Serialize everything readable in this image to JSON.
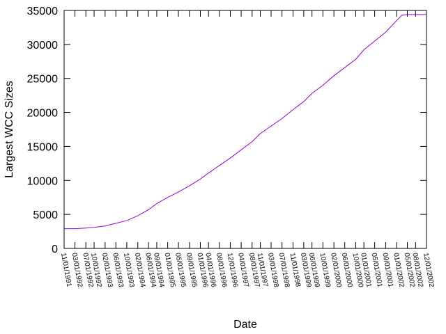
{
  "chart_data": {
    "type": "line",
    "title": "",
    "xlabel": "Date",
    "ylabel": "Largest WCC Sizes",
    "ylim": [
      0,
      35000
    ],
    "y_ticks": [
      0,
      5000,
      10000,
      15000,
      20000,
      25000,
      30000,
      35000
    ],
    "x_tick_labels": [
      "11/01/1991",
      "03/01/1992",
      "07/01/1992",
      "10/01/1992",
      "02/01/1993",
      "06/01/1993",
      "10/01/1993",
      "02/01/1994",
      "06/01/1994",
      "09/01/1994",
      "01/01/1995",
      "05/01/1995",
      "09/01/1995",
      "01/01/1996",
      "04/01/1996",
      "08/01/1996",
      "12/01/1996",
      "04/01/1997",
      "08/01/1997",
      "11/01/1997",
      "03/01/1998",
      "07/01/1998",
      "11/01/1998",
      "03/01/1999",
      "06/01/1999",
      "10/01/1999",
      "02/01/2000",
      "06/01/2000",
      "10/01/2000",
      "01/01/2001",
      "05/01/2001",
      "09/01/2001",
      "01/01/2002",
      "05/01/2002",
      "08/01/2002",
      "12/01/2002"
    ],
    "grid": false,
    "series": [
      {
        "color": "#9400d3",
        "x": [
          "11/01/1991",
          "03/01/1992",
          "07/01/1992",
          "10/01/1992",
          "02/01/1993",
          "06/01/1993",
          "10/01/1993",
          "02/01/1994",
          "06/01/1994",
          "09/01/1994",
          "01/01/1995",
          "05/01/1995",
          "09/01/1995",
          "01/01/1996",
          "04/01/1996",
          "08/01/1996",
          "12/01/1996",
          "04/01/1997",
          "08/01/1997",
          "11/01/1997",
          "03/01/1998",
          "07/01/1998",
          "11/01/1998",
          "03/01/1999",
          "06/01/1999",
          "10/01/1999",
          "02/01/2000",
          "06/01/2000",
          "10/01/2000",
          "01/01/2001",
          "05/01/2001",
          "09/01/2001",
          "01/01/2002",
          "03/01/2002",
          "05/01/2002",
          "08/01/2002",
          "12/01/2002"
        ],
        "y": [
          2900,
          2900,
          3000,
          3100,
          3300,
          3700,
          4100,
          4800,
          5700,
          6600,
          7500,
          8300,
          9200,
          10200,
          11100,
          12200,
          13300,
          14500,
          15700,
          16900,
          18000,
          19100,
          20400,
          21600,
          22800,
          24000,
          25400,
          26600,
          27800,
          29200,
          30500,
          31800,
          33500,
          34300,
          34400,
          34400,
          34400
        ]
      }
    ]
  }
}
